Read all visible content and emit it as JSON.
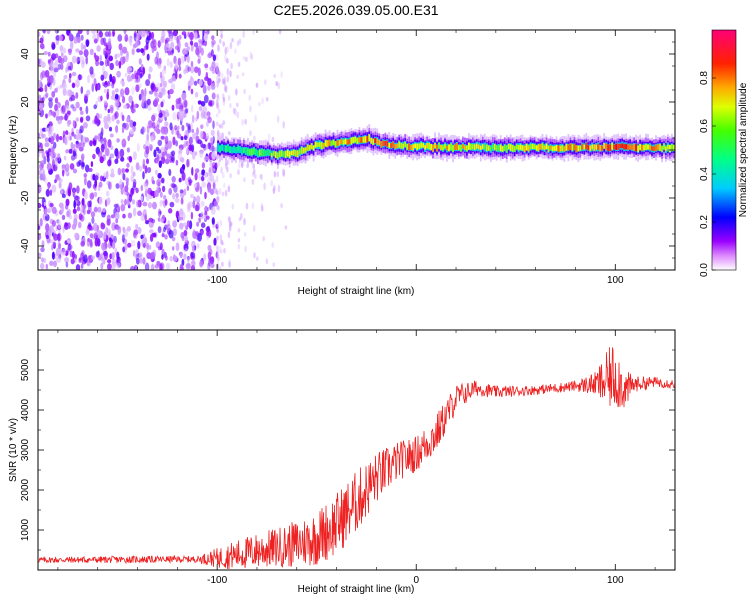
{
  "title": "C2E5.2026.039.05.00.E31",
  "colors": {
    "snr_line": "#ee2222",
    "colormap": [
      "#ffffff",
      "#cc99ff",
      "#8800ff",
      "#0000ff",
      "#00ccff",
      "#00ff66",
      "#aaff00",
      "#ffff00",
      "#ff6600",
      "#ff0000",
      "#ff0066"
    ]
  },
  "chart_data": [
    {
      "type": "heatmap",
      "name": "spectrogram",
      "xlabel": "Height of straight line (km)",
      "ylabel": "Frequency (Hz)",
      "xlim": [
        -190,
        130
      ],
      "ylim": [
        -50,
        50
      ],
      "xticks": [
        -100,
        0,
        100
      ],
      "xtick_labels": [
        "-100",
        "",
        "100"
      ],
      "yticks": [
        -40,
        -20,
        0,
        20,
        40
      ],
      "ytick_labels": [
        "-40",
        "-20",
        "0",
        "20",
        "40"
      ],
      "colorbar": {
        "label": "Normalized spectral amplitude",
        "range": [
          0,
          1
        ],
        "ticks": [
          0.0,
          0.2,
          0.4,
          0.6,
          0.8
        ],
        "tick_labels": [
          "0.0",
          "0.2",
          "0.4",
          "0.6",
          "0.8"
        ]
      },
      "noise_region": {
        "x_from": -190,
        "x_to": -100,
        "amplitude": [
          0.05,
          0.25
        ]
      },
      "ridge": {
        "x": [
          -100,
          -90,
          -80,
          -70,
          -60,
          -50,
          -40,
          -30,
          -25,
          -20,
          -10,
          0,
          20,
          40,
          60,
          80,
          100,
          110,
          130
        ],
        "freq": [
          1,
          0,
          -1,
          -2,
          -1,
          2,
          3,
          4,
          5,
          3,
          2,
          1.5,
          1,
          1,
          1,
          1,
          1.5,
          1,
          1
        ],
        "peak_amplitude": [
          0.5,
          0.55,
          0.6,
          0.65,
          0.7,
          0.72,
          0.75,
          0.8,
          0.85,
          0.85,
          0.8,
          0.75,
          0.75,
          0.7,
          0.75,
          0.8,
          0.9,
          0.85,
          0.7
        ]
      }
    },
    {
      "type": "line",
      "name": "snr",
      "xlabel": "Height of straight line (km)",
      "ylabel": "SNR (10 * v/v)",
      "xlim": [
        -190,
        130
      ],
      "ylim": [
        0,
        6000
      ],
      "xticks": [
        -100,
        0,
        100
      ],
      "xtick_labels": [
        "-100",
        "0",
        "100"
      ],
      "yticks": [
        1000,
        2000,
        3000,
        4000,
        5000
      ],
      "ytick_labels": [
        "1000",
        "2000",
        "3000",
        "4000",
        "5000"
      ],
      "series": [
        {
          "name": "SNR",
          "x": [
            -190,
            -150,
            -110,
            -100,
            -90,
            -80,
            -70,
            -60,
            -50,
            -40,
            -30,
            -20,
            -10,
            0,
            10,
            20,
            30,
            40,
            60,
            80,
            90,
            95,
            100,
            105,
            110,
            120,
            130
          ],
          "mean": [
            250,
            260,
            270,
            300,
            380,
            480,
            560,
            650,
            800,
            1150,
            1700,
            2300,
            2700,
            2900,
            3400,
            4300,
            4550,
            4450,
            4500,
            4600,
            4650,
            4700,
            4900,
            4500,
            4650,
            4700,
            4650
          ],
          "spread": [
            70,
            90,
            80,
            250,
            380,
            450,
            500,
            600,
            700,
            800,
            800,
            650,
            500,
            450,
            500,
            350,
            200,
            150,
            120,
            130,
            300,
            700,
            900,
            500,
            200,
            130,
            120
          ]
        }
      ]
    }
  ]
}
